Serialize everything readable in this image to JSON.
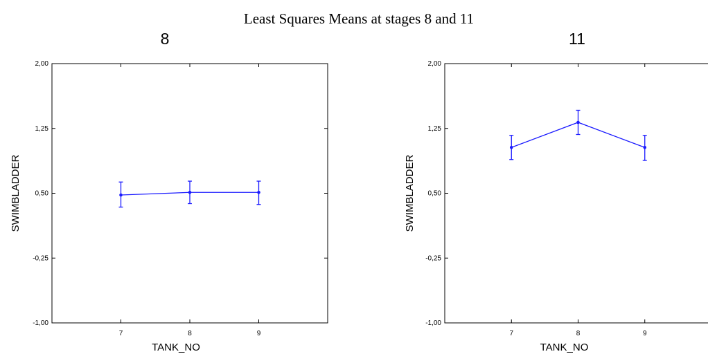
{
  "figure_title": "Least Squares Means at stages 8 and 11",
  "colors": {
    "series": "#1a1aff",
    "axes": "#000000",
    "background": "#ffffff"
  },
  "chart_data": [
    {
      "type": "line",
      "title": "8",
      "xlabel": "TANK_NO",
      "ylabel": "SWIMBLADDER",
      "x": [
        7,
        8,
        9
      ],
      "x_tick_labels": [
        "7",
        "8",
        "9"
      ],
      "xlim": [
        6,
        10
      ],
      "ylim": [
        -1.0,
        2.0
      ],
      "y_ticks": [
        2.0,
        1.25,
        0.5,
        -0.25,
        -1.0
      ],
      "y_tick_labels": [
        "2,00",
        "1,25",
        "0,50",
        "-0,25",
        "-1,00"
      ],
      "grid": false,
      "series": [
        {
          "values": [
            0.48,
            0.51,
            0.51
          ],
          "error_low": [
            0.34,
            0.38,
            0.37
          ],
          "error_high": [
            0.63,
            0.64,
            0.64
          ]
        }
      ]
    },
    {
      "type": "line",
      "title": "11",
      "xlabel": "TANK_NO",
      "ylabel": "SWIMBLADDER",
      "x": [
        7,
        8,
        9
      ],
      "x_tick_labels": [
        "7",
        "8",
        "9"
      ],
      "xlim": [
        6,
        10
      ],
      "ylim": [
        -1.0,
        2.0
      ],
      "y_ticks": [
        2.0,
        1.25,
        0.5,
        -0.25,
        -1.0
      ],
      "y_tick_labels": [
        "2,00",
        "1,25",
        "0,50",
        "-0,25",
        "-1,00"
      ],
      "grid": false,
      "series": [
        {
          "values": [
            1.03,
            1.32,
            1.03
          ],
          "error_low": [
            0.89,
            1.18,
            0.88
          ],
          "error_high": [
            1.17,
            1.46,
            1.17
          ]
        }
      ]
    }
  ]
}
